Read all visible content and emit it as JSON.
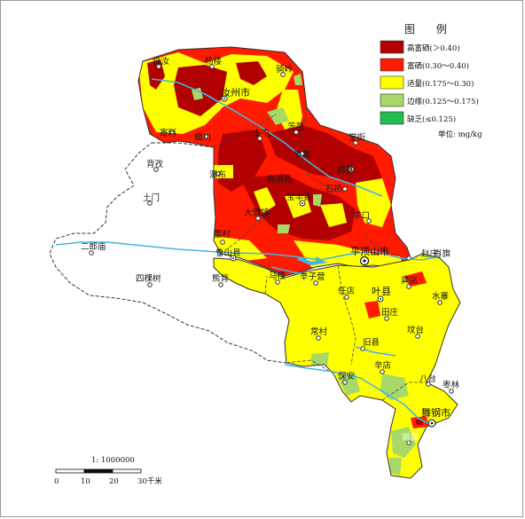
{
  "legend": {
    "title": "图  例",
    "items": [
      {
        "label": "高富硒(＞0.40)",
        "color": "#b20000"
      },
      {
        "label": "富硒(0.30～0.40)",
        "color": "#ff1a00"
      },
      {
        "label": "适量(0.175～0.30)",
        "color": "#ffff00"
      },
      {
        "label": "边缘(0.125～0.175)",
        "color": "#a6d96a"
      },
      {
        "label": "缺乏(≤0.125)",
        "color": "#1fbf4f"
      }
    ],
    "unit": "单位: mg/kg"
  },
  "scale": {
    "ratio": "1: 1000000",
    "ticks": [
      "0",
      "10",
      "20",
      "30千米"
    ]
  },
  "places": [
    {
      "name": "临汝"
    },
    {
      "name": "杨楼"
    },
    {
      "name": "汝州市"
    },
    {
      "name": "骑岭"
    },
    {
      "name": "寄料"
    },
    {
      "name": "蟒川"
    },
    {
      "name": "小屯"
    },
    {
      "name": "茨芭"
    },
    {
      "name": "辛集"
    },
    {
      "name": "郏县"
    },
    {
      "name": "堂街"
    },
    {
      "name": "背孜"
    },
    {
      "name": "瀑布"
    },
    {
      "name": "商酒务"
    },
    {
      "name": "土门"
    },
    {
      "name": "宝丰县"
    },
    {
      "name": "石桥"
    },
    {
      "name": "大营镇"
    },
    {
      "name": "李口"
    },
    {
      "name": "董村"
    },
    {
      "name": "鲁山县"
    },
    {
      "name": "平顶山市"
    },
    {
      "name": "二郎庙"
    },
    {
      "name": "四棵树"
    },
    {
      "name": "熊背"
    },
    {
      "name": "马楼"
    },
    {
      "name": "辛子营"
    },
    {
      "name": "任店"
    },
    {
      "name": "叶县"
    },
    {
      "name": "龚店"
    },
    {
      "name": "水寨"
    },
    {
      "name": "田庄"
    },
    {
      "name": "常村"
    },
    {
      "name": "坟台"
    },
    {
      "name": "旧县"
    },
    {
      "name": "辛店"
    },
    {
      "name": "保安"
    },
    {
      "name": "八台"
    },
    {
      "name": "枣林"
    },
    {
      "name": "舞钢市"
    },
    {
      "name": "尚店"
    },
    {
      "name": "赵庄"
    },
    {
      "name": "肖旗"
    }
  ]
}
